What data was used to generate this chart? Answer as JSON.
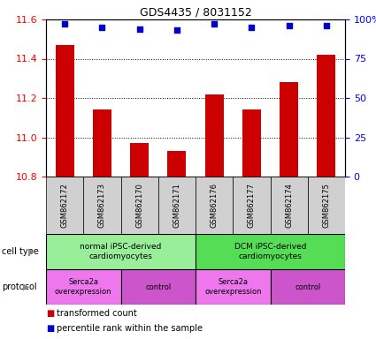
{
  "title": "GDS4435 / 8031152",
  "samples": [
    "GSM862172",
    "GSM862173",
    "GSM862170",
    "GSM862171",
    "GSM862176",
    "GSM862177",
    "GSM862174",
    "GSM862175"
  ],
  "bar_values": [
    11.47,
    11.14,
    10.97,
    10.93,
    11.22,
    11.14,
    11.28,
    11.42
  ],
  "blue_dot_values": [
    97,
    95,
    94,
    93,
    97,
    95,
    96,
    96
  ],
  "ylim_left": [
    10.8,
    11.6
  ],
  "ylim_right": [
    0,
    100
  ],
  "yticks_left": [
    10.8,
    11.0,
    11.2,
    11.4,
    11.6
  ],
  "yticks_right": [
    0,
    25,
    50,
    75,
    100
  ],
  "bar_color": "#cc0000",
  "dot_color": "#0000cc",
  "cell_type_groups": [
    {
      "label": "normal iPSC-derived\ncardiomyocytes",
      "start": 0,
      "end": 4,
      "color": "#99ee99"
    },
    {
      "label": "DCM iPSC-derived\ncardiomyocytes",
      "start": 4,
      "end": 8,
      "color": "#55dd55"
    }
  ],
  "protocol_groups": [
    {
      "label": "Serca2a\noverexpression",
      "start": 0,
      "end": 2,
      "color": "#ee77ee"
    },
    {
      "label": "control",
      "start": 2,
      "end": 4,
      "color": "#cc55cc"
    },
    {
      "label": "Serca2a\noverexpression",
      "start": 4,
      "end": 6,
      "color": "#ee77ee"
    },
    {
      "label": "control",
      "start": 6,
      "end": 8,
      "color": "#cc55cc"
    }
  ],
  "legend_items": [
    {
      "label": "transformed count",
      "color": "#cc0000"
    },
    {
      "label": "percentile rank within the sample",
      "color": "#0000cc"
    }
  ],
  "cell_type_label": "cell type",
  "protocol_label": "protocol"
}
